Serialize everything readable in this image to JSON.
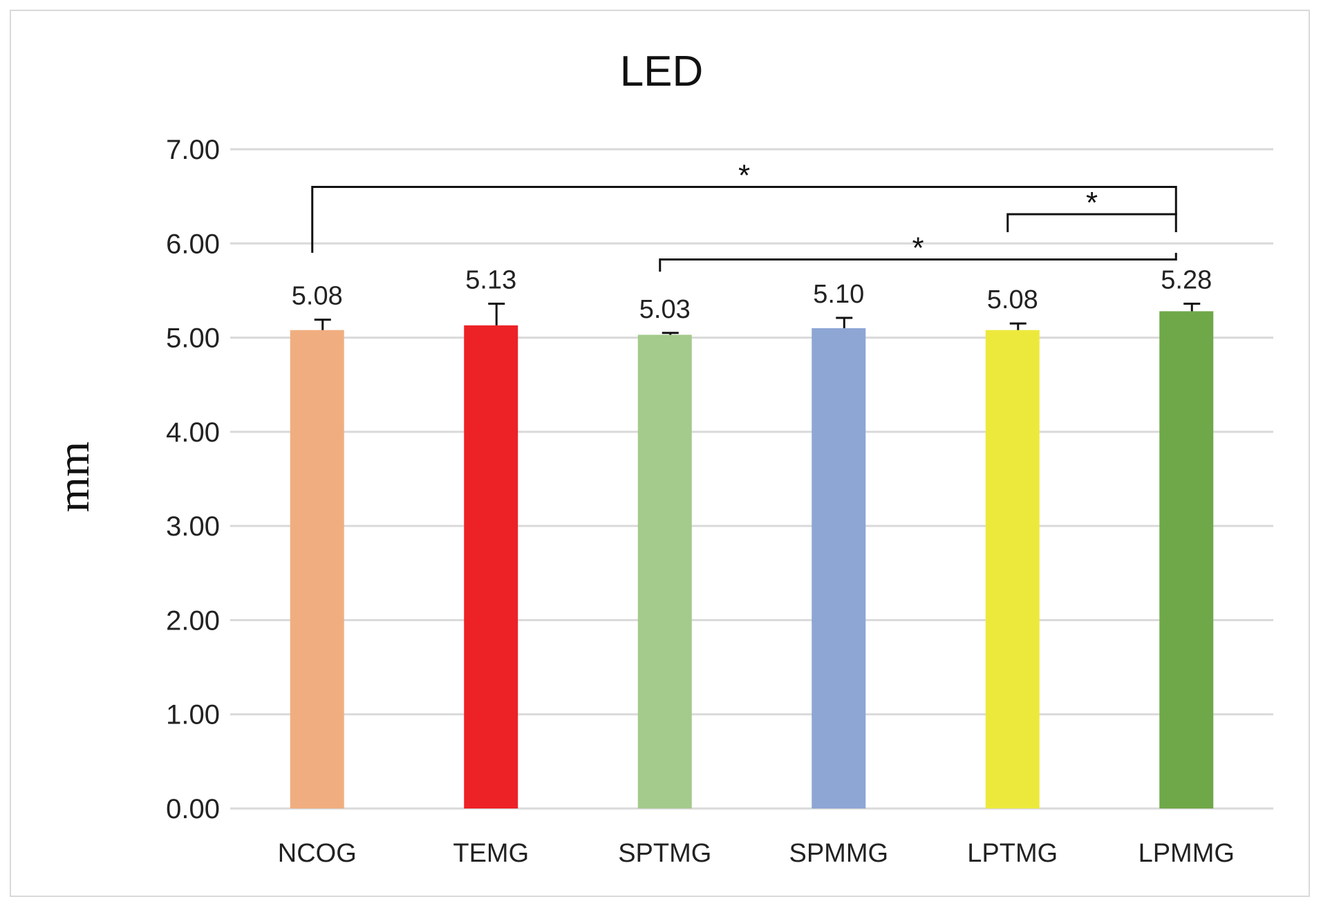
{
  "chart_data": {
    "type": "bar",
    "title": "LED",
    "xlabel": "",
    "ylabel": "mm",
    "ylim": [
      0,
      7
    ],
    "yticks": [
      "0.00",
      "1.00",
      "2.00",
      "3.00",
      "4.00",
      "5.00",
      "6.00",
      "7.00"
    ],
    "grid": true,
    "categories": [
      "NCOG",
      "TEMG",
      "SPTMG",
      "SPMMG",
      "LPTMG",
      "LPMMG"
    ],
    "values": [
      5.08,
      5.13,
      5.03,
      5.1,
      5.08,
      5.28
    ],
    "value_labels": [
      "5.08",
      "5.13",
      "5.03",
      "5.10",
      "5.08",
      "5.28"
    ],
    "errors": [
      0.11,
      0.23,
      0.02,
      0.11,
      0.07,
      0.08
    ],
    "colors": [
      "#F0AE80",
      "#EC2226",
      "#A4CA8C",
      "#8EA6D4",
      "#EDE93C",
      "#6FA849"
    ],
    "significance": [
      {
        "from": "NCOG",
        "to": "LPMMG",
        "label": "*",
        "level": 6.6
      },
      {
        "from": "LPTMG",
        "to": "LPMMG",
        "label": "*",
        "level": 6.31
      },
      {
        "from": "SPTMG",
        "to": "LPMMG",
        "label": "*",
        "level": 5.83
      }
    ]
  }
}
